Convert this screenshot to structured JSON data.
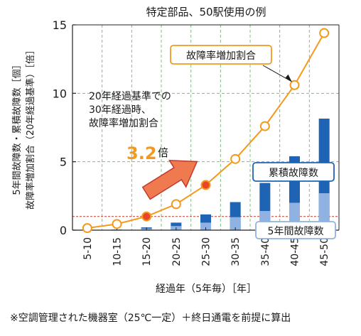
{
  "chart_data": {
    "type": "bar",
    "title": "特定部品、50駅使用の例",
    "xlabel": "経過年（5年毎）［年］",
    "ylabel_lines": [
      "5年間故障数・累積故障数［個］",
      "故障率増加割合（20年経過基準）［倍］"
    ],
    "categories": [
      "5-10",
      "10-15",
      "15-20",
      "20-25",
      "25-30",
      "30-35",
      "35-40",
      "40-45",
      "45-50"
    ],
    "ylim": [
      0,
      15
    ],
    "yticks": [
      0,
      5,
      10,
      15
    ],
    "grid": true,
    "series": [
      {
        "name": "5年間故障数",
        "kind": "bar",
        "color": "#8fb2e2",
        "values": [
          0,
          0.05,
          0.12,
          0.3,
          0.55,
          0.95,
          1.4,
          2.0,
          2.7
        ]
      },
      {
        "name": "累積故障数",
        "kind": "bar",
        "color": "#1f64b4",
        "values": [
          0,
          0.05,
          0.2,
          0.55,
          1.15,
          2.05,
          3.45,
          5.4,
          8.15
        ]
      },
      {
        "name": "故障率増加割合",
        "kind": "line",
        "color": "#f39a1d",
        "values": [
          0.15,
          0.45,
          1.0,
          1.9,
          3.3,
          5.2,
          7.6,
          10.6,
          14.4
        ],
        "highlight": [
          "15-20",
          "25-30"
        ]
      }
    ],
    "reference_line": {
      "value": 1.0,
      "color": "#c0392b"
    },
    "annotation": {
      "lines": [
        "20年経過基準での",
        "30年経過時、",
        "故障率増加割合"
      ],
      "value": "3.2",
      "unit": "倍"
    }
  },
  "note": "※空調管理された機器室（25℃一定）＋終日通電を前提に算出",
  "colors": {
    "grid": "#7fbf7f",
    "line": "#f39a1d",
    "highlight": "#e8452a",
    "arrow": "#f07a50",
    "value": "#f39a1d"
  }
}
